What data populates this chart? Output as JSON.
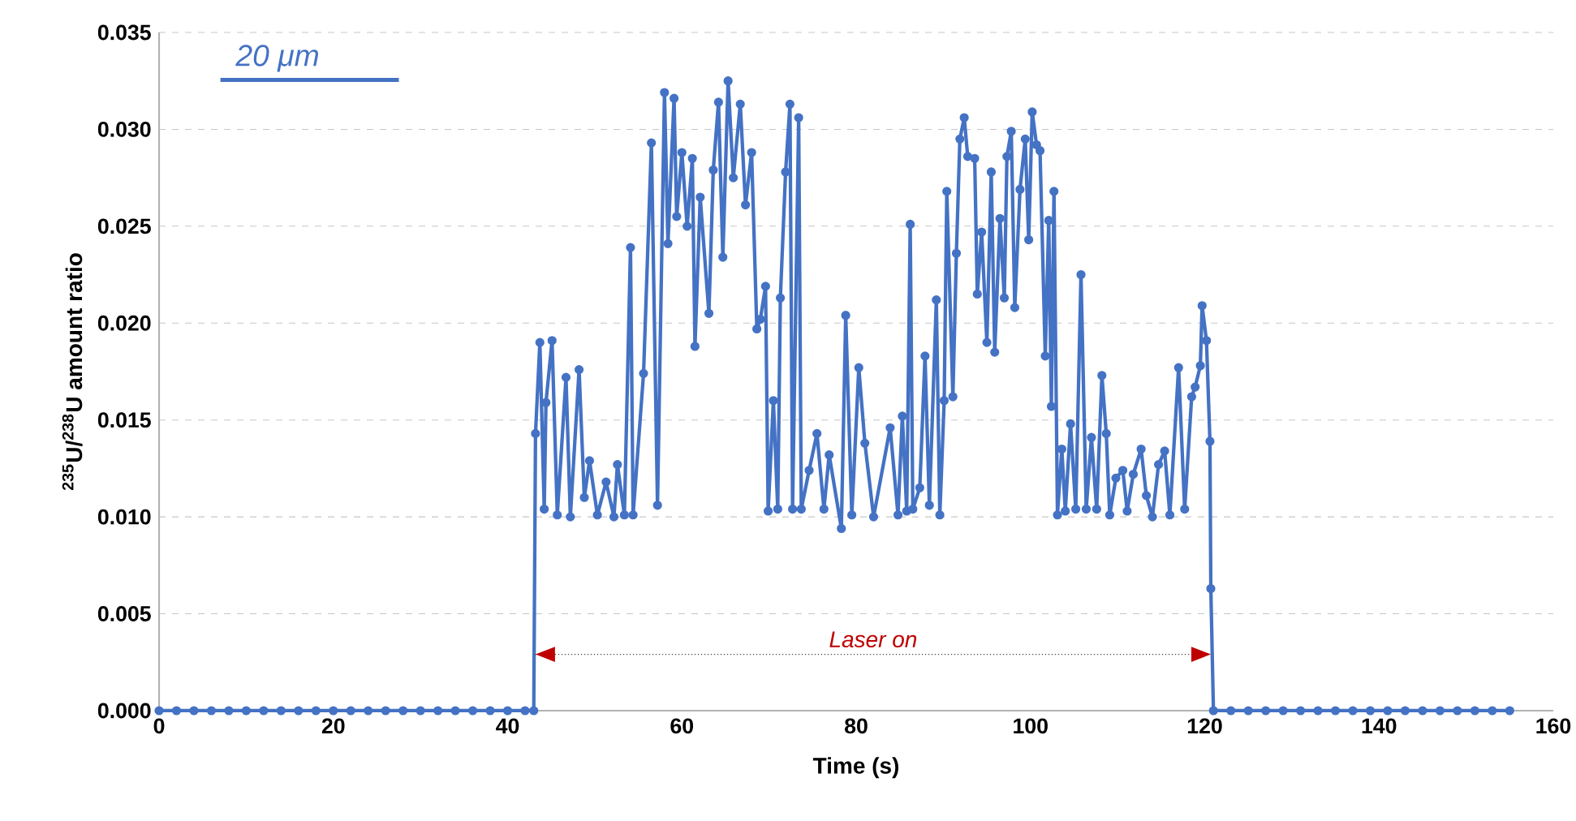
{
  "chart_data": {
    "type": "line",
    "xlabel": "Time (s)",
    "ylabel": "$^{235}$U/$^{238}$U amount ratio",
    "annotations": [
      "20 μm",
      "Laser on"
    ],
    "xlim": [
      0,
      160
    ],
    "xticks": [
      0,
      20,
      40,
      60,
      80,
      100,
      120,
      140,
      160
    ],
    "ylim": [
      0,
      0.035
    ],
    "yticks": [
      {
        "value": 0,
        "label": "0.000"
      },
      {
        "value": 0.005,
        "label": "0.005"
      },
      {
        "value": 0.01,
        "label": "0.010"
      },
      {
        "value": 0.015,
        "label": "0.015"
      },
      {
        "value": 0.02,
        "label": "0.020"
      },
      {
        "value": 0.025,
        "label": "0.025"
      },
      {
        "value": 0.03,
        "label": "0.030"
      },
      {
        "value": 0.035,
        "label": "0.035"
      }
    ],
    "grid": "y",
    "marker": "circle",
    "line_style": "solid",
    "series": [
      {
        "color": "#4472c4",
        "x": [
          0,
          2,
          4,
          6,
          8,
          10,
          12,
          14,
          16,
          18,
          20,
          22,
          24,
          26,
          28,
          30,
          32,
          34,
          36,
          38,
          40,
          42,
          43,
          43.2,
          43.7,
          44.2,
          44.4,
          45.1,
          45.7,
          46.7,
          47.2,
          48.2,
          48.8,
          49.4,
          50.3,
          51.3,
          52.2,
          52.6,
          53.4,
          54.1,
          54.4,
          55.6,
          56.5,
          57.2,
          58.0,
          58.4,
          59.1,
          59.4,
          60.0,
          60.6,
          61.2,
          61.5,
          62.1,
          63.1,
          63.6,
          64.2,
          64.7,
          65.3,
          65.9,
          66.7,
          67.3,
          68.0,
          68.6,
          69.0,
          69.6,
          69.9,
          70.5,
          71.0,
          71.3,
          71.9,
          72.4,
          72.7,
          73.4,
          73.7,
          74.6,
          75.5,
          76.3,
          76.9,
          78.3,
          78.8,
          79.5,
          80.3,
          81.0,
          82.0,
          83.9,
          84.8,
          85.3,
          85.8,
          86.2,
          86.5,
          87.3,
          87.9,
          88.4,
          89.2,
          89.6,
          90.1,
          90.4,
          91.1,
          91.5,
          91.9,
          92.4,
          92.8,
          93.6,
          93.9,
          94.4,
          95.0,
          95.5,
          95.9,
          96.5,
          97.0,
          97.3,
          97.8,
          98.2,
          98.8,
          99.4,
          99.8,
          100.2,
          100.7,
          101.1,
          101.7,
          102.1,
          102.4,
          102.7,
          103.1,
          103.6,
          104.0,
          104.6,
          105.2,
          105.8,
          106.4,
          107.0,
          107.6,
          108.2,
          108.7,
          109.1,
          109.8,
          110.6,
          111.1,
          111.8,
          112.7,
          113.3,
          114.0,
          114.7,
          115.4,
          116.0,
          117.0,
          117.7,
          118.5,
          118.9,
          119.5,
          119.7,
          120.2,
          120.6,
          120.7,
          121,
          123,
          125,
          127,
          129,
          131,
          133,
          135,
          137,
          139,
          141,
          143,
          145,
          147,
          149,
          151,
          153,
          155
        ],
        "values": [
          0,
          0,
          0,
          0,
          0,
          0,
          0,
          0,
          0,
          0,
          0,
          0,
          0,
          0,
          0,
          0,
          0,
          0,
          0,
          0,
          0,
          0,
          0,
          0.0143,
          0.019,
          0.0104,
          0.0159,
          0.0191,
          0.0101,
          0.0172,
          0.01,
          0.0176,
          0.011,
          0.0129,
          0.0101,
          0.0118,
          0.01,
          0.0127,
          0.0101,
          0.0239,
          0.0101,
          0.0174,
          0.0293,
          0.0106,
          0.0319,
          0.0241,
          0.0316,
          0.0255,
          0.0288,
          0.025,
          0.0285,
          0.0188,
          0.0265,
          0.0205,
          0.0279,
          0.0314,
          0.0234,
          0.0325,
          0.0275,
          0.0313,
          0.0261,
          0.0288,
          0.0197,
          0.0202,
          0.0219,
          0.0103,
          0.016,
          0.0104,
          0.0213,
          0.0278,
          0.0313,
          0.0104,
          0.0306,
          0.0104,
          0.0124,
          0.0143,
          0.0104,
          0.0132,
          0.0094,
          0.0204,
          0.0101,
          0.0177,
          0.0138,
          0.01,
          0.0146,
          0.0101,
          0.0152,
          0.0103,
          0.0251,
          0.0104,
          0.0115,
          0.0183,
          0.0106,
          0.0212,
          0.0101,
          0.016,
          0.0268,
          0.0162,
          0.0236,
          0.0295,
          0.0306,
          0.0286,
          0.0285,
          0.0215,
          0.0247,
          0.019,
          0.0278,
          0.0185,
          0.0254,
          0.0213,
          0.0286,
          0.0299,
          0.0208,
          0.0269,
          0.0295,
          0.0243,
          0.0309,
          0.0292,
          0.0289,
          0.0183,
          0.0253,
          0.0157,
          0.0268,
          0.0101,
          0.0135,
          0.0103,
          0.0148,
          0.0104,
          0.0225,
          0.0104,
          0.0141,
          0.0104,
          0.0173,
          0.0143,
          0.0101,
          0.012,
          0.0124,
          0.0103,
          0.0122,
          0.0135,
          0.0111,
          0.01,
          0.0127,
          0.0134,
          0.0101,
          0.0177,
          0.0104,
          0.0162,
          0.0167,
          0.0178,
          0.0209,
          0.0191,
          0.0139,
          0.0063,
          0,
          0,
          0,
          0,
          0,
          0,
          0,
          0,
          0,
          0,
          0,
          0,
          0,
          0,
          0,
          0,
          0,
          0
        ]
      }
    ]
  }
}
